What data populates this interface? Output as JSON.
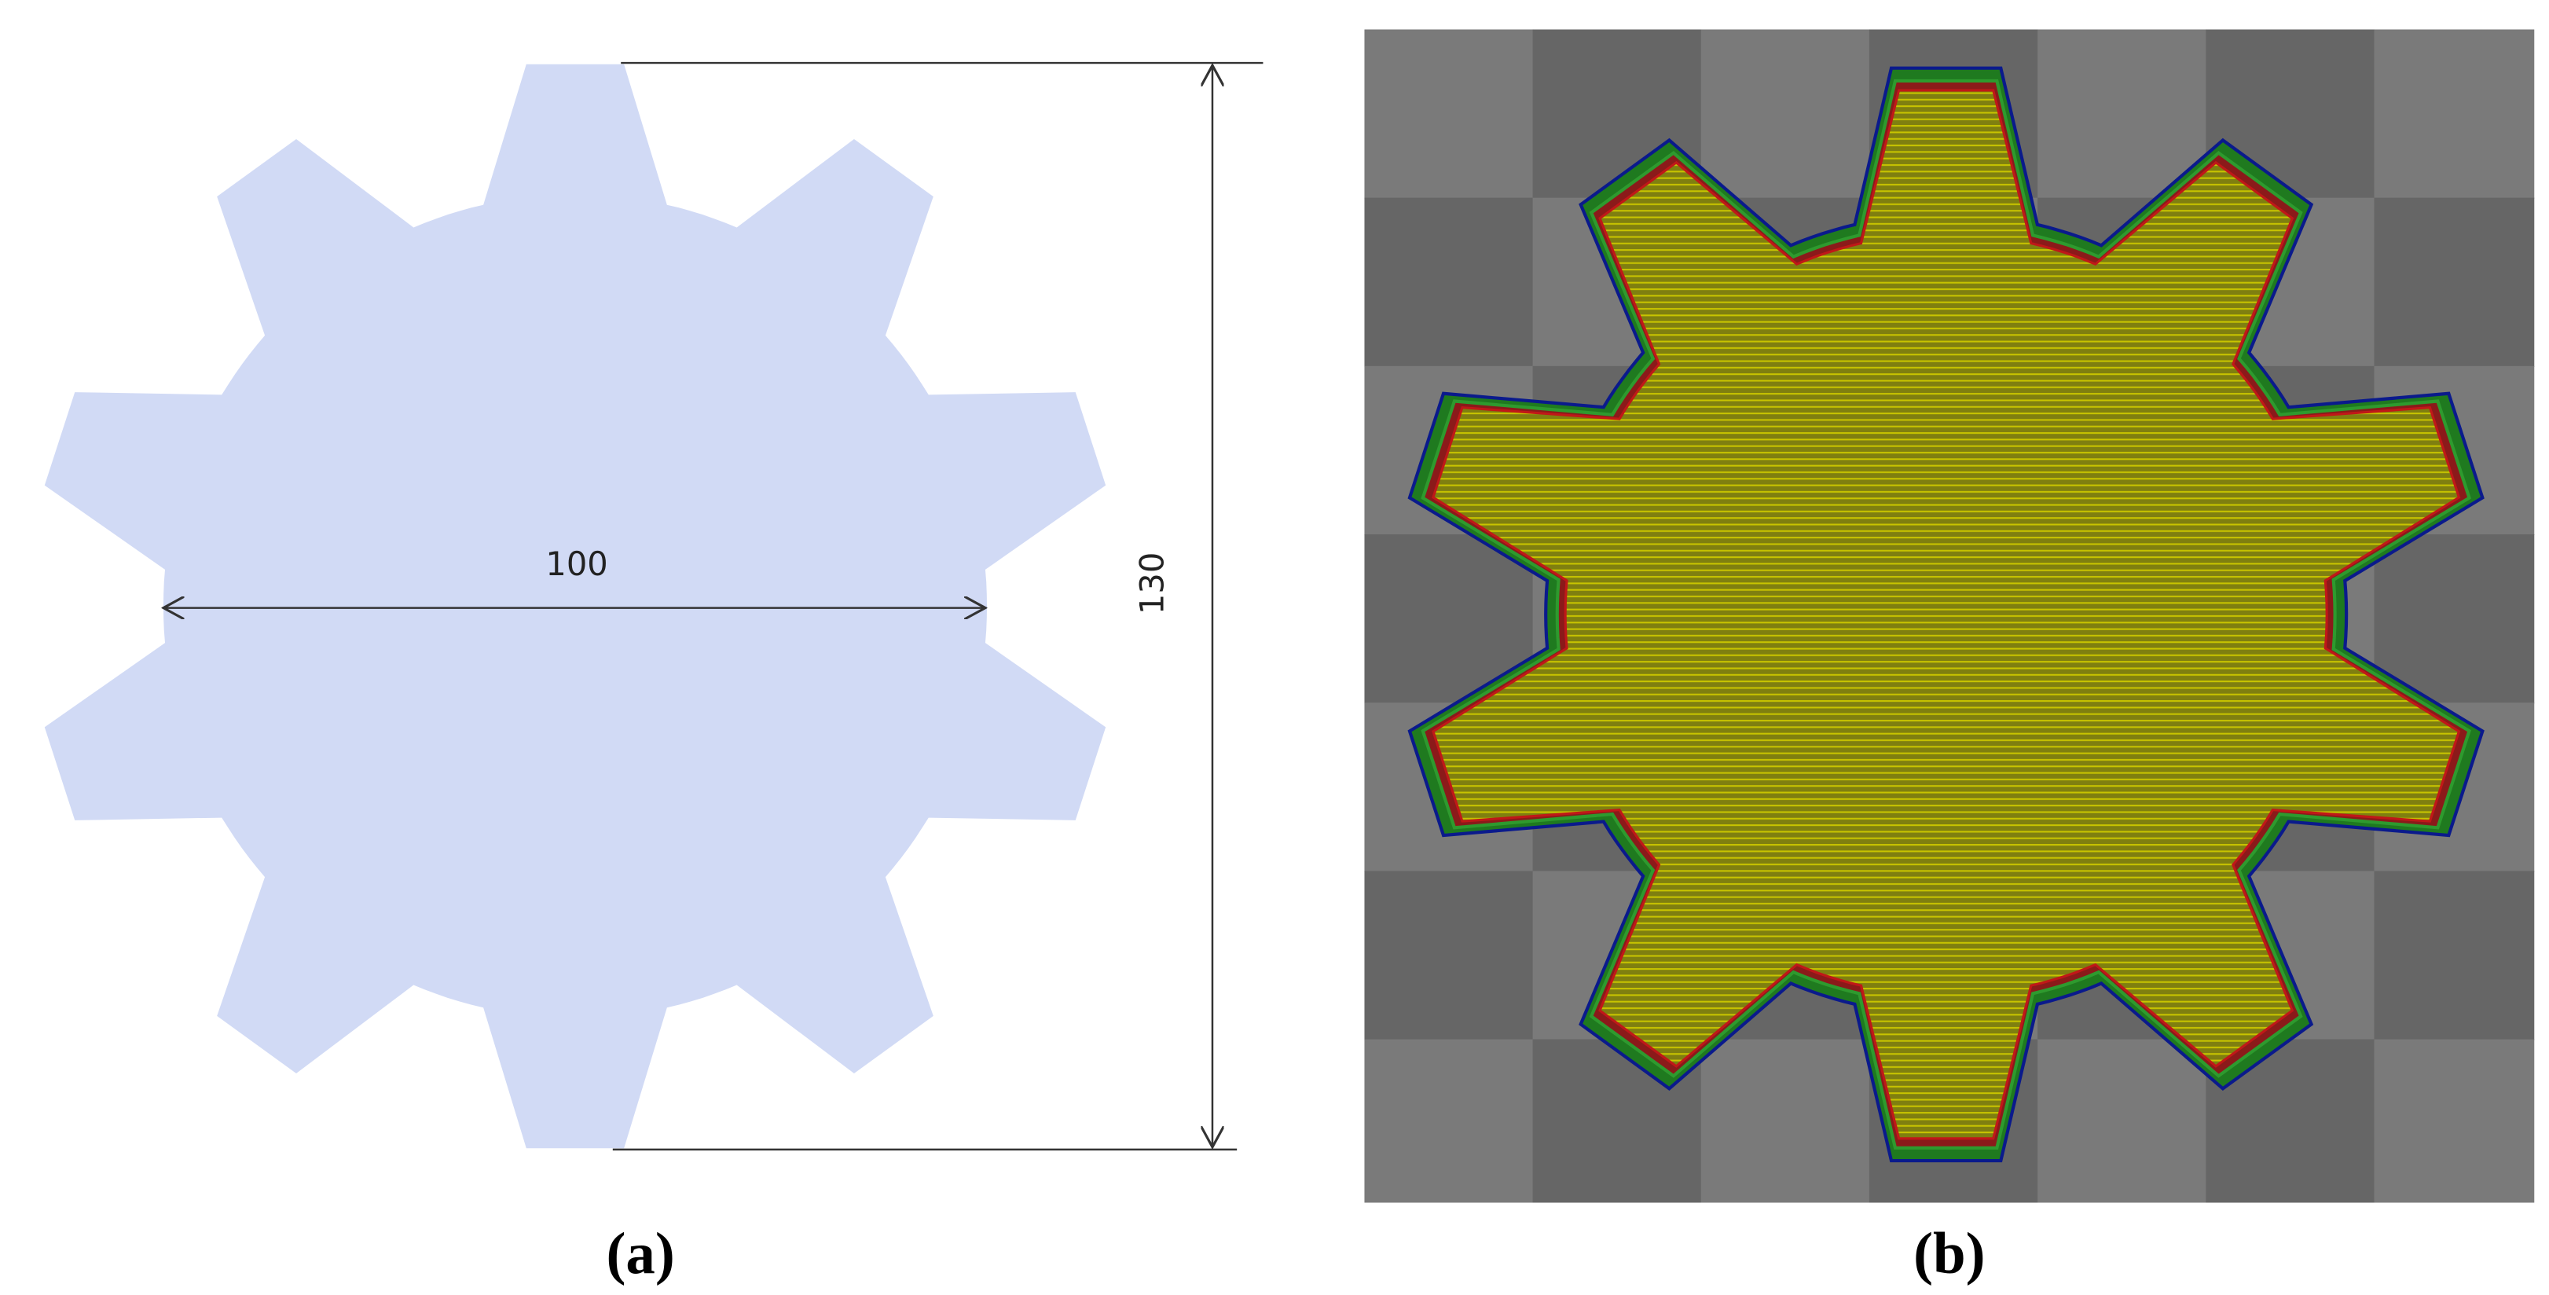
{
  "panels": [
    {
      "label": "(a)",
      "dimensions": {
        "width": 100,
        "height": 130
      }
    },
    {
      "label": "(b)"
    }
  ]
}
